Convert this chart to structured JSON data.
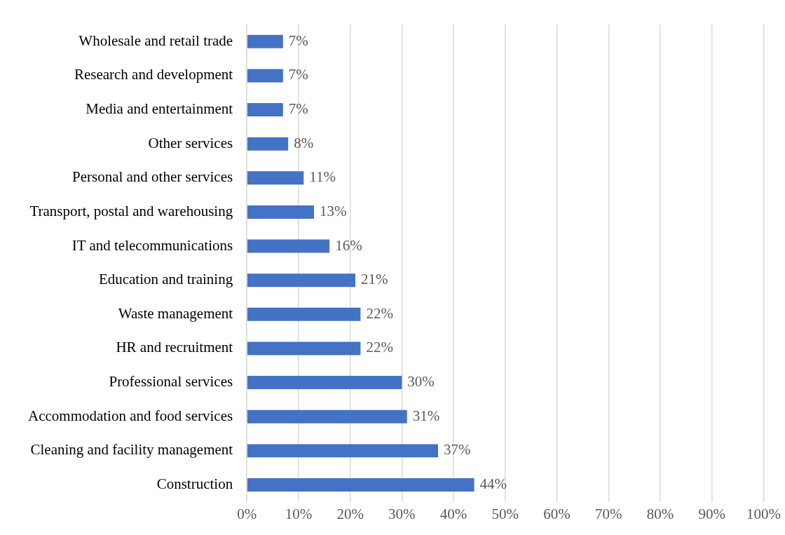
{
  "chart_data": {
    "type": "bar",
    "orientation": "horizontal",
    "categories": [
      "Wholesale and retail trade",
      "Research and development",
      "Media and entertainment",
      "Other services",
      "Personal and other services",
      "Transport, postal and warehousing",
      "IT and telecommunications",
      "Education and training",
      "Waste management",
      "HR and recruitment",
      "Professional services",
      "Accommodation and food services",
      "Cleaning and facility management",
      "Construction"
    ],
    "values": [
      7,
      7,
      7,
      8,
      11,
      13,
      16,
      21,
      22,
      22,
      30,
      31,
      37,
      44
    ],
    "value_labels": [
      "7%",
      "7%",
      "7%",
      "8%",
      "11%",
      "13%",
      "16%",
      "21%",
      "22%",
      "22%",
      "30%",
      "31%",
      "37%",
      "44%"
    ],
    "color": "#4472c4",
    "xlim": [
      0,
      100
    ],
    "xticks": [
      {
        "value": 0,
        "label": "0%"
      },
      {
        "value": 10,
        "label": "10%"
      },
      {
        "value": 20,
        "label": "20%"
      },
      {
        "value": 30,
        "label": "30%"
      },
      {
        "value": 40,
        "label": "40%"
      },
      {
        "value": 50,
        "label": "50%"
      },
      {
        "value": 60,
        "label": "60%"
      },
      {
        "value": 70,
        "label": "70%"
      },
      {
        "value": 80,
        "label": "80%"
      },
      {
        "value": 90,
        "label": "90%"
      },
      {
        "value": 100,
        "label": "100%"
      }
    ],
    "grid": "x",
    "legend": false
  }
}
